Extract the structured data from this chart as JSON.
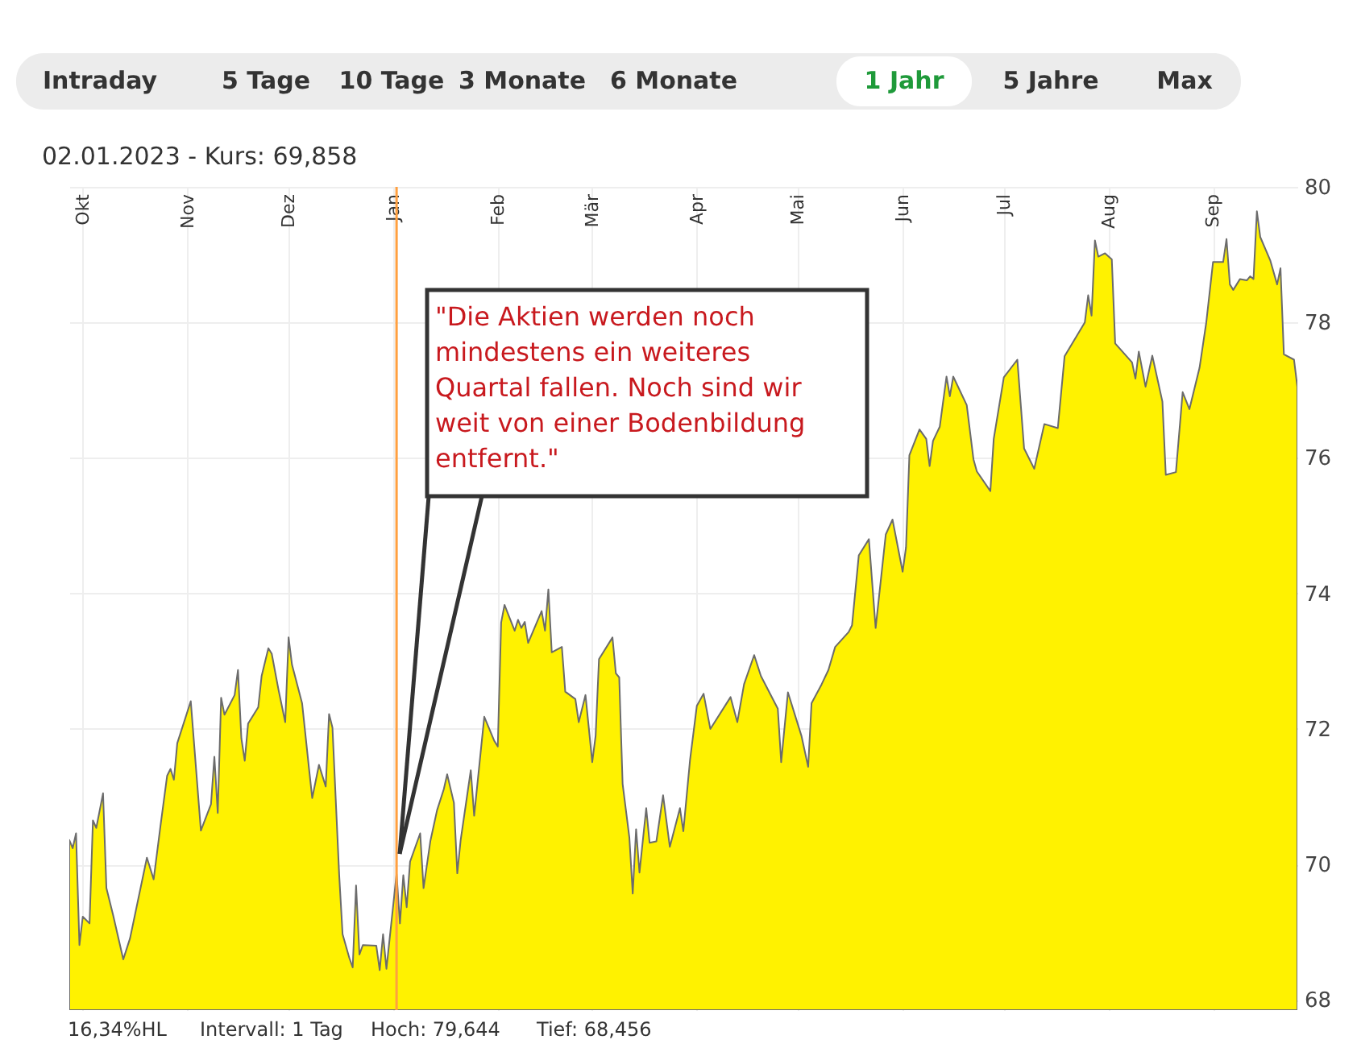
{
  "chart_data": {
    "type": "area",
    "subtitle": "02.01.2023  -  Kurs: 69,858",
    "x": [
      "2022-09-27",
      "2022-09-28",
      "2022-09-29",
      "2022-09-30",
      "2022-10-01",
      "2022-10-03",
      "2022-10-04",
      "2022-10-05",
      "2022-10-07",
      "2022-10-08",
      "2022-10-10",
      "2022-10-13",
      "2022-10-15",
      "2022-10-20",
      "2022-10-22",
      "2022-10-24",
      "2022-10-26",
      "2022-10-27",
      "2022-10-28",
      "2022-10-29",
      "2022-11-02",
      "2022-11-05",
      "2022-11-08",
      "2022-11-09",
      "2022-11-10",
      "2022-11-11",
      "2022-11-12",
      "2022-11-15",
      "2022-11-16",
      "2022-11-17",
      "2022-11-18",
      "2022-11-19",
      "2022-11-22",
      "2022-11-23",
      "2022-11-25",
      "2022-11-26",
      "2022-11-28",
      "2022-11-30",
      "2022-12-01",
      "2022-12-02",
      "2022-12-05",
      "2022-12-07",
      "2022-12-08",
      "2022-12-10",
      "2022-12-12",
      "2022-12-13",
      "2022-12-14",
      "2022-12-16",
      "2022-12-17",
      "2022-12-19",
      "2022-12-20",
      "2022-12-21",
      "2022-12-22",
      "2022-12-23",
      "2022-12-27",
      "2022-12-28",
      "2022-12-29",
      "2022-12-30",
      "2023-01-02",
      "2023-01-03",
      "2023-01-04",
      "2023-01-05",
      "2023-01-06",
      "2023-01-09",
      "2023-01-10",
      "2023-01-12",
      "2023-01-14",
      "2023-01-16",
      "2023-01-17",
      "2023-01-19",
      "2023-01-20",
      "2023-01-21",
      "2023-01-24",
      "2023-01-25",
      "2023-01-28",
      "2023-01-31",
      "2023-02-01",
      "2023-02-02",
      "2023-02-03",
      "2023-02-06",
      "2023-02-07",
      "2023-02-08",
      "2023-02-09",
      "2023-02-10",
      "2023-02-14",
      "2023-02-15",
      "2023-02-16",
      "2023-02-17",
      "2023-02-20",
      "2023-02-21",
      "2023-02-24",
      "2023-02-25",
      "2023-02-27",
      "2023-03-01",
      "2023-03-02",
      "2023-03-03",
      "2023-03-07",
      "2023-03-08",
      "2023-03-09",
      "2023-03-10",
      "2023-03-12",
      "2023-03-13",
      "2023-03-14",
      "2023-03-15",
      "2023-03-17",
      "2023-03-18",
      "2023-03-20",
      "2023-03-22",
      "2023-03-24",
      "2023-03-27",
      "2023-03-28",
      "2023-03-30",
      "2023-04-01",
      "2023-04-03",
      "2023-04-05",
      "2023-04-11",
      "2023-04-13",
      "2023-04-15",
      "2023-04-18",
      "2023-04-20",
      "2023-04-25",
      "2023-04-26",
      "2023-04-28",
      "2023-05-02",
      "2023-05-04",
      "2023-05-05",
      "2023-05-08",
      "2023-05-10",
      "2023-05-12",
      "2023-05-16",
      "2023-05-17",
      "2023-05-19",
      "2023-05-22",
      "2023-05-24",
      "2023-05-27",
      "2023-05-29",
      "2023-06-01",
      "2023-06-02",
      "2023-06-03",
      "2023-06-06",
      "2023-06-08",
      "2023-06-09",
      "2023-06-10",
      "2023-06-12",
      "2023-06-14",
      "2023-06-15",
      "2023-06-16",
      "2023-06-20",
      "2023-06-22",
      "2023-06-23",
      "2023-06-27",
      "2023-06-28",
      "2023-07-01",
      "2023-07-05",
      "2023-07-07",
      "2023-07-10",
      "2023-07-13",
      "2023-07-17",
      "2023-07-19",
      "2023-07-25",
      "2023-07-26",
      "2023-07-27",
      "2023-07-28",
      "2023-07-29",
      "2023-07-31",
      "2023-08-02",
      "2023-08-03",
      "2023-08-08",
      "2023-08-09",
      "2023-08-10",
      "2023-08-12",
      "2023-08-14",
      "2023-08-17",
      "2023-08-18",
      "2023-08-21",
      "2023-08-23",
      "2023-08-25",
      "2023-08-28",
      "2023-08-30",
      "2023-09-01",
      "2023-09-04",
      "2023-09-05",
      "2023-09-06",
      "2023-09-07",
      "2023-09-09",
      "2023-09-11",
      "2023-09-12",
      "2023-09-13",
      "2023-09-14",
      "2023-09-15",
      "2023-09-18",
      "2023-09-20",
      "2023-09-21",
      "2023-09-22",
      "2023-09-25",
      "2023-09-26"
    ],
    "series": [
      {
        "color": "#fff200",
        "values": [
          70.36,
          70.24,
          70.46,
          68.81,
          69.23,
          69.13,
          70.65,
          70.54,
          71.05,
          69.65,
          69.25,
          68.6,
          68.91,
          70.1,
          69.78,
          70.56,
          71.31,
          71.41,
          71.25,
          71.79,
          72.41,
          70.5,
          70.89,
          71.59,
          70.76,
          72.46,
          72.21,
          72.5,
          72.87,
          71.86,
          71.53,
          72.08,
          72.32,
          72.78,
          73.19,
          73.11,
          72.58,
          72.1,
          73.35,
          72.95,
          72.38,
          71.44,
          70.98,
          71.47,
          71.15,
          72.22,
          72.02,
          69.84,
          68.97,
          68.62,
          68.48,
          69.69,
          68.67,
          68.81,
          68.8,
          68.44,
          68.97,
          68.46,
          69.86,
          69.13,
          69.84,
          69.37,
          70.04,
          70.46,
          69.65,
          70.34,
          70.8,
          71.11,
          71.33,
          70.91,
          69.87,
          70.36,
          71.39,
          70.72,
          72.18,
          71.82,
          71.74,
          73.57,
          73.83,
          73.45,
          73.61,
          73.49,
          73.58,
          73.27,
          73.74,
          73.45,
          74.06,
          73.13,
          73.21,
          72.55,
          72.44,
          72.1,
          72.5,
          71.51,
          71.9,
          73.03,
          73.35,
          72.82,
          72.76,
          71.19,
          70.4,
          69.57,
          70.52,
          69.88,
          70.83,
          70.32,
          70.34,
          71.02,
          70.26,
          70.83,
          70.49,
          71.55,
          72.34,
          72.52,
          72.0,
          72.47,
          72.1,
          72.66,
          73.09,
          72.78,
          72.3,
          71.51,
          72.54,
          71.9,
          71.44,
          72.38,
          72.66,
          72.87,
          73.21,
          73.43,
          73.53,
          74.56,
          74.8,
          73.49,
          74.87,
          75.09,
          74.32,
          74.68,
          76.04,
          76.42,
          76.28,
          75.88,
          76.25,
          76.46,
          77.2,
          76.91,
          77.2,
          76.78,
          75.98,
          75.8,
          75.51,
          76.28,
          77.19,
          77.45,
          76.14,
          75.84,
          76.5,
          76.44,
          77.5,
          78.0,
          78.4,
          78.1,
          79.21,
          78.97,
          79.02,
          78.93,
          77.69,
          77.41,
          77.17,
          77.57,
          77.05,
          77.51,
          76.83,
          75.75,
          75.79,
          76.97,
          76.72,
          77.33,
          78.0,
          78.89,
          78.89,
          79.23,
          78.56,
          78.48,
          78.64,
          78.62,
          78.68,
          78.64,
          79.64,
          79.26,
          78.91,
          78.56,
          78.8,
          77.53,
          77.45,
          77.05
        ]
      }
    ],
    "xlim": [
      "2022-09-27",
      "2023-09-26"
    ],
    "xticks": [
      {
        "value": "2022-10-01",
        "label": "Okt"
      },
      {
        "value": "2022-11-01",
        "label": "Nov"
      },
      {
        "value": "2022-12-01",
        "label": "Dez"
      },
      {
        "value": "2023-01-01",
        "label": "Jan"
      },
      {
        "value": "2023-02-01",
        "label": "Feb"
      },
      {
        "value": "2023-03-01",
        "label": "Mär"
      },
      {
        "value": "2023-04-01",
        "label": "Apr"
      },
      {
        "value": "2023-05-01",
        "label": "Mai"
      },
      {
        "value": "2023-06-01",
        "label": "Jun"
      },
      {
        "value": "2023-07-01",
        "label": "Jul"
      },
      {
        "value": "2023-08-01",
        "label": "Aug"
      },
      {
        "value": "2023-09-01",
        "label": "Sep"
      }
    ],
    "ylim": [
      67.85,
      80
    ],
    "yticks": [
      68,
      70,
      72,
      74,
      76,
      78,
      80
    ],
    "grid": true,
    "ref_lines": [
      {
        "axis": "x",
        "value": "2023-01-02",
        "color": "#ffa040"
      }
    ],
    "annotations": [
      {
        "text": "\"Die Aktien werden noch mindestens ein weiteres Quartal fallen. Noch sind wir weit von einer Bodenbildung entfernt.\""
      },
      "16,34%HL",
      "Intervall: 1 Tag",
      "Hoch:  79,644",
      "Tief:  68,456",
      "Intraday",
      "5 Tage",
      "10 Tage",
      "3 Monate",
      "6 Monate",
      "1 Jahr",
      "5 Jahre",
      "Max"
    ]
  }
}
